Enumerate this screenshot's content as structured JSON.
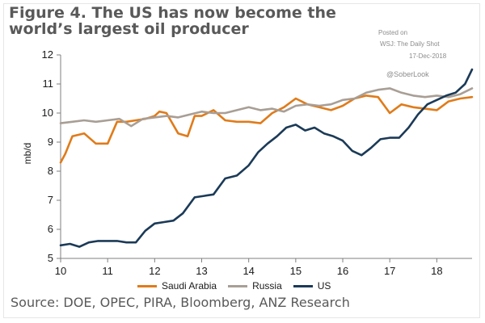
{
  "title": "Figure 4. The US has now become the world’s largest oil producer",
  "watermark": {
    "posted_on": "Posted on",
    "outlet": "WSJ: The Daily Shot",
    "date": "17-Dec-2018",
    "handle": "@SoberLook"
  },
  "source": "Source: DOE, OPEC, PIRA, Bloomberg, ANZ Research",
  "chart_data": {
    "type": "line",
    "ylabel": "mb/d",
    "xlabel": "",
    "xlim": [
      10,
      18.75
    ],
    "ylim": [
      5,
      12
    ],
    "x_ticks": [
      10,
      11,
      12,
      13,
      14,
      15,
      16,
      17,
      18
    ],
    "y_ticks": [
      5,
      6,
      7,
      8,
      9,
      10,
      11,
      12
    ],
    "grid": false,
    "legend_position": "bottom",
    "series": [
      {
        "name": "Saudi Arabia",
        "color": "#E07B1A",
        "x": [
          10,
          10.1,
          10.25,
          10.5,
          10.75,
          11,
          11.2,
          11.4,
          11.6,
          11.8,
          12,
          12.1,
          12.25,
          12.5,
          12.7,
          12.85,
          13,
          13.25,
          13.5,
          13.75,
          14,
          14.25,
          14.5,
          14.75,
          15,
          15.25,
          15.5,
          15.75,
          16,
          16.25,
          16.5,
          16.75,
          17,
          17.25,
          17.5,
          17.75,
          18,
          18.25,
          18.5,
          18.75
        ],
        "values": [
          8.3,
          8.6,
          9.2,
          9.3,
          8.95,
          8.95,
          9.7,
          9.7,
          9.75,
          9.8,
          9.9,
          10.05,
          10.0,
          9.3,
          9.2,
          9.9,
          9.9,
          10.1,
          9.75,
          9.7,
          9.7,
          9.65,
          10.0,
          10.2,
          10.5,
          10.3,
          10.2,
          10.1,
          10.25,
          10.5,
          10.6,
          10.55,
          10.0,
          10.3,
          10.2,
          10.15,
          10.1,
          10.4,
          10.5,
          10.55
        ]
      },
      {
        "name": "Russia",
        "color": "#A89E95",
        "x": [
          10,
          10.25,
          10.5,
          10.75,
          11,
          11.25,
          11.5,
          11.75,
          12,
          12.25,
          12.5,
          12.75,
          13,
          13.25,
          13.5,
          13.75,
          14,
          14.25,
          14.5,
          14.75,
          15,
          15.25,
          15.5,
          15.75,
          16,
          16.25,
          16.5,
          16.75,
          17,
          17.25,
          17.5,
          17.75,
          18,
          18.25,
          18.5,
          18.75
        ],
        "values": [
          9.65,
          9.7,
          9.75,
          9.7,
          9.75,
          9.8,
          9.55,
          9.8,
          9.85,
          9.9,
          9.85,
          9.95,
          10.05,
          10.0,
          10.0,
          10.1,
          10.2,
          10.1,
          10.15,
          10.05,
          10.25,
          10.3,
          10.25,
          10.3,
          10.45,
          10.5,
          10.7,
          10.8,
          10.85,
          10.7,
          10.6,
          10.55,
          10.6,
          10.55,
          10.65,
          10.85
        ]
      },
      {
        "name": "US",
        "color": "#1B3A57",
        "x": [
          10,
          10.2,
          10.4,
          10.6,
          10.8,
          11,
          11.2,
          11.4,
          11.6,
          11.8,
          12,
          12.2,
          12.4,
          12.6,
          12.85,
          13.05,
          13.25,
          13.5,
          13.75,
          14,
          14.2,
          14.4,
          14.6,
          14.8,
          15,
          15.2,
          15.4,
          15.6,
          15.8,
          16,
          16.2,
          16.4,
          16.6,
          16.8,
          17,
          17.2,
          17.4,
          17.6,
          17.8,
          18,
          18.2,
          18.4,
          18.6,
          18.75
        ],
        "values": [
          5.45,
          5.5,
          5.4,
          5.55,
          5.6,
          5.6,
          5.6,
          5.55,
          5.55,
          5.95,
          6.2,
          6.25,
          6.3,
          6.55,
          7.1,
          7.15,
          7.2,
          7.75,
          7.85,
          8.2,
          8.65,
          8.95,
          9.2,
          9.5,
          9.6,
          9.4,
          9.5,
          9.3,
          9.2,
          9.05,
          8.7,
          8.55,
          8.8,
          9.1,
          9.15,
          9.15,
          9.5,
          9.95,
          10.3,
          10.45,
          10.6,
          10.7,
          11.0,
          11.5
        ]
      }
    ]
  }
}
